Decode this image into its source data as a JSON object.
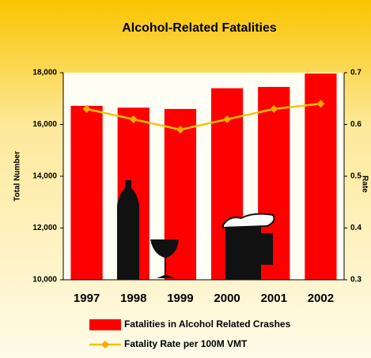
{
  "chart_data": {
    "type": "bar-line",
    "title": "Alcohol-Related Fatalities",
    "y_label": "Total Number",
    "y2_label": "Rate",
    "categories": [
      "1997",
      "1998",
      "1999",
      "2000",
      "2001",
      "2002"
    ],
    "series": [
      {
        "name": "Fatalities in Alcohol Related Crashes",
        "type": "bar",
        "color": "#ff0000",
        "values": [
          16720,
          16650,
          16600,
          17400,
          17450,
          17970
        ]
      },
      {
        "name": "Fatality Rate per 100M VMT",
        "type": "line",
        "axis": "y2",
        "color": "#f5c400",
        "marker_color": "#ffa500",
        "values": [
          0.63,
          0.61,
          0.59,
          0.61,
          0.63,
          0.64
        ]
      }
    ],
    "ylim": [
      10000,
      18000
    ],
    "yticks": [
      {
        "value": 10000,
        "label": "10,000"
      },
      {
        "value": 12000,
        "label": "12,000"
      },
      {
        "value": 14000,
        "label": "14,000"
      },
      {
        "value": 16000,
        "label": "16,000"
      },
      {
        "value": 18000,
        "label": "18,000"
      }
    ],
    "y2lim": [
      0.3,
      0.7
    ],
    "y2ticks": [
      0.3,
      0.4,
      0.5,
      0.6,
      0.7
    ],
    "grid": false
  }
}
